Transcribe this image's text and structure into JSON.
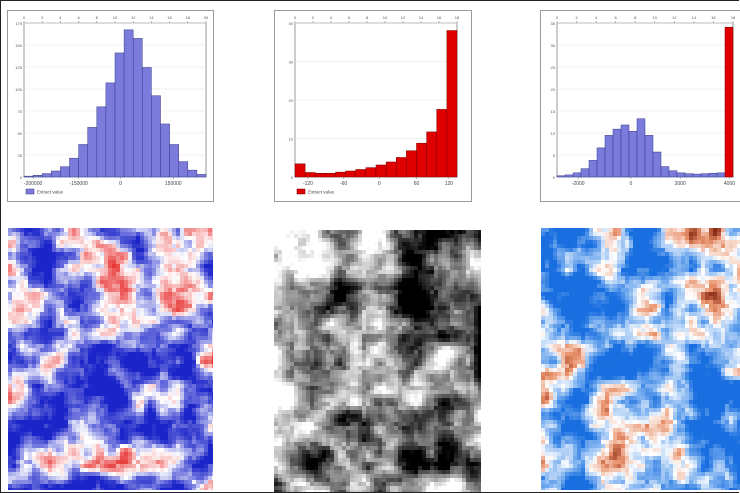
{
  "chart_data": [
    {
      "type": "bar",
      "x_ticks": [
        "-200000",
        "-150000",
        "0",
        "150000"
      ],
      "top_ticks": [
        "0",
        "2",
        "4",
        "6",
        "8",
        "10",
        "12",
        "14",
        "16",
        "18",
        "20"
      ],
      "y_ticks": [
        "0",
        "25",
        "50",
        "75",
        "100",
        "125",
        "150",
        "175"
      ],
      "ylim": [
        0,
        180
      ],
      "legend": "Extract value",
      "colors": {
        "fill": "#7b7bdc",
        "stroke": "#3a3a8a"
      },
      "series": [
        {
          "values": [
            1,
            2,
            4,
            7,
            12,
            22,
            38,
            58,
            82,
            110,
            145,
            172,
            162,
            128,
            95,
            62,
            38,
            18,
            8,
            3
          ]
        }
      ]
    },
    {
      "type": "bar",
      "x_ticks": [
        "-120",
        "-60",
        "0",
        "60",
        "120"
      ],
      "top_ticks": [
        "0",
        "2",
        "4",
        "6",
        "8",
        "10",
        "12",
        "14",
        "16",
        "18"
      ],
      "y_ticks": [
        "0",
        "10",
        "20",
        "30",
        "40"
      ],
      "ylim": [
        0,
        41
      ],
      "legend": "Extract value",
      "colors": {
        "fill": "#e00000",
        "stroke": "#7a0000"
      },
      "series": [
        {
          "values": [
            3.5,
            1.2,
            1.0,
            1.0,
            1.3,
            1.6,
            2.0,
            2.5,
            3.2,
            4.0,
            5.2,
            7.0,
            9.0,
            12.0,
            18.0,
            39.0
          ]
        }
      ]
    },
    {
      "type": "bar",
      "x_ticks": [
        "-2000",
        "0",
        "2000",
        "4000"
      ],
      "top_ticks": [
        "0",
        "2",
        "4",
        "6",
        "8",
        "10",
        "12",
        "14",
        "16",
        "18"
      ],
      "y_ticks": [
        "0",
        "5",
        "10",
        "15",
        "20",
        "25",
        "30",
        "35"
      ],
      "ylim": [
        0,
        37
      ],
      "legend": "",
      "colors": {
        "fill": "#7b7bdc",
        "stroke": "#3a3a8a",
        "outlier_fill": "#e00000"
      },
      "series": [
        {
          "values": [
            0.3,
            0.5,
            1.0,
            2.0,
            4.0,
            7.0,
            10.0,
            11.5,
            12.5,
            11.0,
            14.0,
            10.0,
            6.0,
            2.5,
            1.5,
            1.0,
            0.8,
            0.7,
            0.8,
            0.9,
            1.0,
            36.0
          ]
        }
      ]
    }
  ],
  "maps": [
    {
      "palette": [
        "#1a24c8",
        "#6f74dd",
        "#ffffff",
        "#f07a7a",
        "#e31a1a"
      ]
    },
    {
      "palette": [
        "#000000",
        "#555555",
        "#aaaaaa",
        "#ffffff"
      ]
    },
    {
      "palette": [
        "#1a6fe0",
        "#7fb2f0",
        "#ffffff",
        "#e8906a",
        "#8a2a14"
      ]
    }
  ]
}
